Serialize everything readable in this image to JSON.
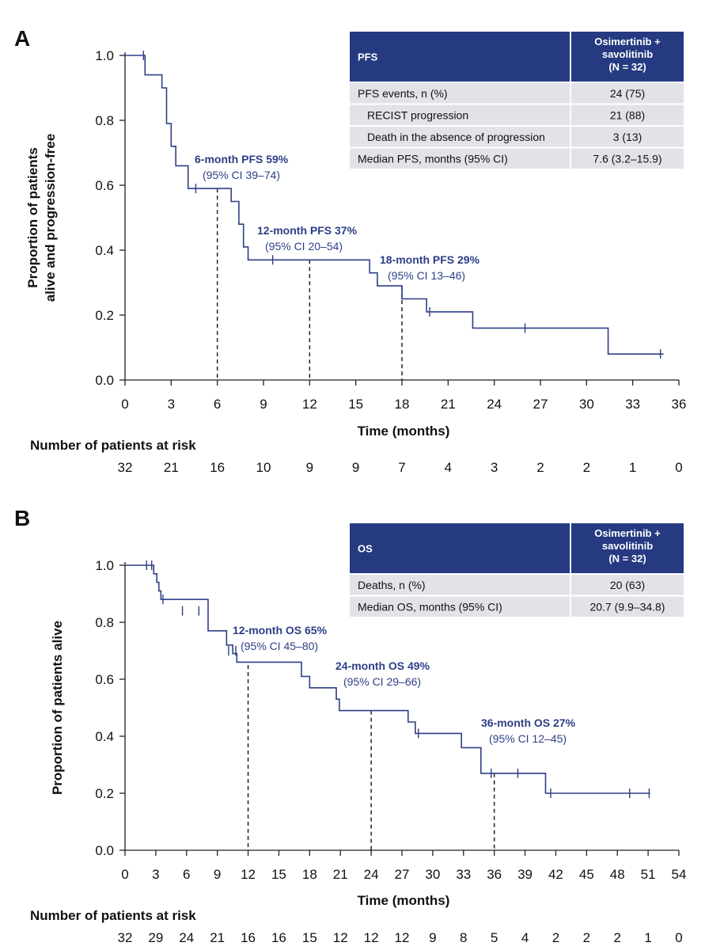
{
  "panels": [
    {
      "letter": "A",
      "table": {
        "header": [
          "PFS",
          "Osimertinib +\nsavolitinib\n(N = 32)"
        ],
        "rows": [
          {
            "label": "PFS events, n (%)",
            "value": "24 (75)",
            "indent": false
          },
          {
            "label": "RECIST progression",
            "value": "21 (88)",
            "indent": true
          },
          {
            "label": "Death in the absence of progression",
            "value": "3 (13)",
            "indent": true
          },
          {
            "label": "Median PFS, months (95% CI)",
            "value": "7.6 (3.2–15.9)",
            "indent": false
          }
        ]
      },
      "risk_title": "Number of patients at risk",
      "risk_numbers": [
        "32",
        "21",
        "16",
        "10",
        "9",
        "9",
        "7",
        "4",
        "3",
        "2",
        "2",
        "1",
        "0"
      ]
    },
    {
      "letter": "B",
      "table": {
        "header": [
          "OS",
          "Osimertinib +\nsavolitinib\n(N = 32)"
        ],
        "rows": [
          {
            "label": "Deaths, n (%)",
            "value": "20 (63)",
            "indent": false
          },
          {
            "label": "Median OS, months (95% CI)",
            "value": "20.7 (9.9–34.8)",
            "indent": false
          }
        ]
      },
      "risk_title": "Number of patients at risk",
      "risk_numbers": [
        "32",
        "29",
        "24",
        "21",
        "16",
        "16",
        "15",
        "12",
        "12",
        "12",
        "9",
        "8",
        "5",
        "4",
        "2",
        "2",
        "2",
        "1",
        "0"
      ]
    }
  ],
  "colors": {
    "curve": "#2d3f86",
    "table_header": "#253a80",
    "table_row": "#e2e3e8"
  },
  "chart_data": [
    {
      "type": "line",
      "xlabel": "Time (months)",
      "ylabel": "Proportion of patients\nalive and progression-free",
      "xlim": [
        0,
        36
      ],
      "ylim": [
        0,
        1
      ],
      "xticks": [
        0,
        3,
        6,
        9,
        12,
        15,
        18,
        21,
        24,
        27,
        30,
        33,
        36
      ],
      "yticks": [
        "0.0",
        "0.2",
        "0.4",
        "0.6",
        "0.8",
        "1.0"
      ],
      "step": [
        [
          0,
          1.0
        ],
        [
          1.3,
          0.94
        ],
        [
          2.4,
          0.9
        ],
        [
          2.7,
          0.79
        ],
        [
          3.0,
          0.72
        ],
        [
          3.3,
          0.66
        ],
        [
          4.1,
          0.59
        ],
        [
          6.9,
          0.55
        ],
        [
          7.4,
          0.48
        ],
        [
          7.7,
          0.41
        ],
        [
          8.0,
          0.37
        ],
        [
          15.9,
          0.33
        ],
        [
          16.4,
          0.29
        ],
        [
          18.0,
          0.25
        ],
        [
          19.6,
          0.21
        ],
        [
          22.6,
          0.16
        ],
        [
          31.4,
          0.08
        ],
        [
          35.0,
          0.08
        ]
      ],
      "censored": [
        [
          1.2,
          1.0
        ],
        [
          4.6,
          0.59
        ],
        [
          9.6,
          0.37
        ],
        [
          19.8,
          0.21
        ],
        [
          26.0,
          0.16
        ],
        [
          34.8,
          0.08
        ]
      ],
      "landmarks": [
        {
          "x": 6,
          "y": 0.59,
          "title": "6-month PFS 59%",
          "ci": "(95% CI 39–74)"
        },
        {
          "x": 12,
          "y": 0.37,
          "title": "12-month PFS 37%",
          "ci": "(95% CI 20–54)"
        },
        {
          "x": 18,
          "y": 0.29,
          "title": "18-month PFS 29%",
          "ci": "(95% CI 13–46)"
        }
      ]
    },
    {
      "type": "line",
      "xlabel": "Time (months)",
      "ylabel": "Proportion of patients alive",
      "xlim": [
        0,
        54
      ],
      "ylim": [
        0,
        1
      ],
      "xticks": [
        0,
        3,
        6,
        9,
        12,
        15,
        18,
        21,
        24,
        27,
        30,
        33,
        36,
        39,
        42,
        45,
        48,
        51,
        54
      ],
      "yticks": [
        "0.0",
        "0.2",
        "0.4",
        "0.6",
        "0.8",
        "1.0"
      ],
      "step": [
        [
          0,
          1.0
        ],
        [
          2.8,
          0.97
        ],
        [
          3.1,
          0.94
        ],
        [
          3.3,
          0.91
        ],
        [
          3.5,
          0.88
        ],
        [
          8.1,
          0.77
        ],
        [
          9.9,
          0.72
        ],
        [
          10.5,
          0.69
        ],
        [
          10.9,
          0.66
        ],
        [
          17.2,
          0.61
        ],
        [
          18.0,
          0.57
        ],
        [
          20.6,
          0.53
        ],
        [
          20.9,
          0.49
        ],
        [
          27.6,
          0.45
        ],
        [
          28.3,
          0.41
        ],
        [
          32.8,
          0.36
        ],
        [
          34.7,
          0.27
        ],
        [
          41.0,
          0.2
        ],
        [
          51.2,
          0.2
        ]
      ],
      "censored": [
        [
          2.1,
          1.0
        ],
        [
          2.6,
          1.0
        ],
        [
          3.7,
          0.88
        ],
        [
          5.6,
          0.84
        ],
        [
          7.2,
          0.84
        ],
        [
          10.1,
          0.7
        ],
        [
          10.8,
          0.7
        ],
        [
          28.6,
          0.41
        ],
        [
          35.7,
          0.27
        ],
        [
          38.3,
          0.27
        ],
        [
          41.5,
          0.2
        ],
        [
          49.2,
          0.2
        ],
        [
          51.1,
          0.2
        ]
      ],
      "landmarks": [
        {
          "x": 12,
          "y": 0.65,
          "title": "12-month OS 65%",
          "ci": "(95% CI 45–80)"
        },
        {
          "x": 24,
          "y": 0.49,
          "title": "24-month OS 49%",
          "ci": "(95% CI 29–66)"
        },
        {
          "x": 36,
          "y": 0.27,
          "title": "36-month OS 27%",
          "ci": "(95% CI 12–45)"
        }
      ]
    }
  ]
}
